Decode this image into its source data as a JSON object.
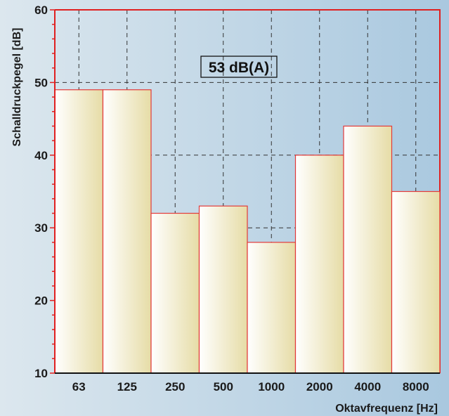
{
  "chart_data": {
    "type": "bar",
    "categories": [
      "63",
      "125",
      "250",
      "500",
      "1000",
      "2000",
      "4000",
      "8000"
    ],
    "values": [
      49,
      49,
      32,
      33,
      28,
      40,
      44,
      35
    ],
    "xlabel": "Oktavfrequenz [Hz]",
    "ylabel": "Schalldruckpegel  [dB]",
    "ylim": [
      10,
      60
    ],
    "yticks": [
      "10",
      "20",
      "30",
      "40",
      "50",
      "60"
    ],
    "annotation": "53 dB(A)",
    "grid": "dashed",
    "colors": {
      "bar_fill_light": "#ffffff",
      "bar_fill_dark": "#e6dca6",
      "bar_stroke": "#e23a3a",
      "frame": "#e02020",
      "grid": "#333333",
      "background_light": "#dce7ee",
      "background_dark": "#a9c8df"
    }
  }
}
